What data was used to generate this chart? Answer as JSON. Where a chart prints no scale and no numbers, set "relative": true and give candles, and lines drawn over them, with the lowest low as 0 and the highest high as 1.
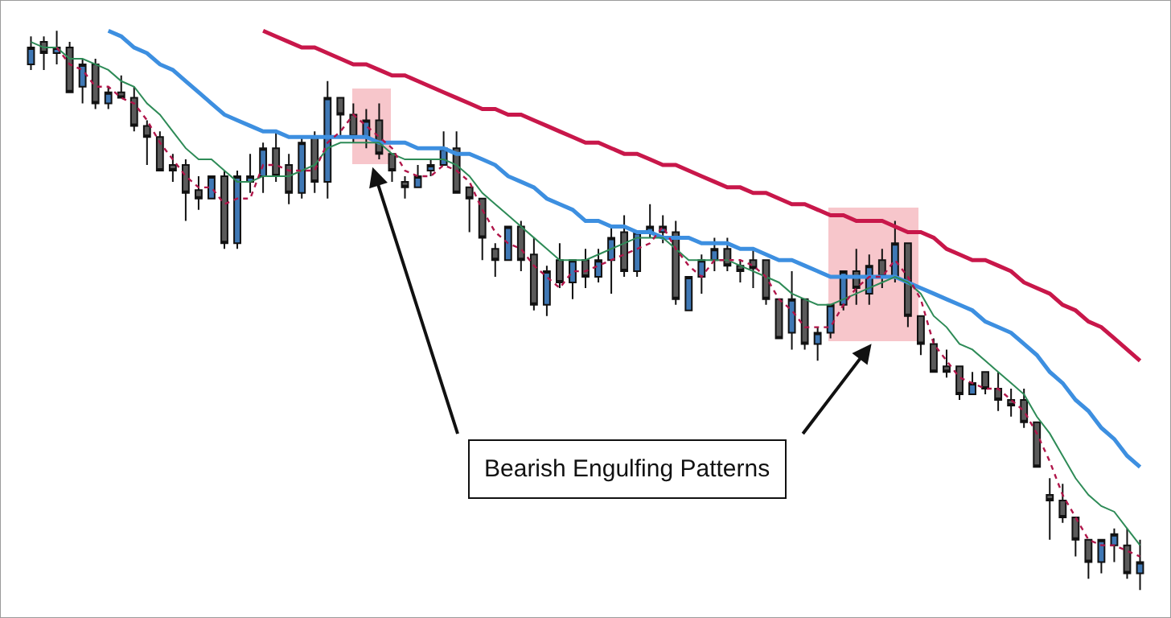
{
  "chart_data": {
    "type": "candlestick",
    "relative": true,
    "tick_labels": false,
    "categories": [
      null,
      null,
      null,
      null,
      null,
      null,
      null,
      null,
      null,
      null,
      null,
      null,
      null,
      null,
      null,
      null,
      null,
      null,
      null,
      null,
      null,
      null,
      null,
      null,
      null,
      null,
      null,
      null,
      null,
      null,
      null,
      null,
      null,
      null,
      null,
      null,
      null,
      null,
      null,
      null,
      null,
      null,
      null,
      null,
      null,
      null,
      null,
      null,
      null,
      null,
      null,
      null,
      null,
      null,
      null,
      null,
      null,
      null,
      null,
      null,
      null,
      null,
      null,
      null,
      null,
      null,
      null,
      null,
      null,
      null,
      null,
      null,
      null,
      null,
      null,
      null,
      null,
      null,
      null,
      null,
      null,
      null,
      null,
      null,
      null,
      null,
      null
    ],
    "ohlc": [
      [
        0.94,
        0.99,
        0.93,
        0.97
      ],
      [
        0.98,
        0.99,
        0.93,
        0.96
      ],
      [
        0.96,
        1.0,
        0.94,
        0.97
      ],
      [
        0.97,
        0.98,
        0.89,
        0.89
      ],
      [
        0.9,
        0.95,
        0.87,
        0.94
      ],
      [
        0.94,
        0.95,
        0.86,
        0.87
      ],
      [
        0.87,
        0.9,
        0.86,
        0.89
      ],
      [
        0.89,
        0.92,
        0.88,
        0.88
      ],
      [
        0.88,
        0.9,
        0.82,
        0.83
      ],
      [
        0.83,
        0.84,
        0.76,
        0.81
      ],
      [
        0.81,
        0.82,
        0.75,
        0.75
      ],
      [
        0.76,
        0.78,
        0.73,
        0.75
      ],
      [
        0.76,
        0.77,
        0.66,
        0.71
      ],
      [
        0.715,
        0.74,
        0.68,
        0.7
      ],
      [
        0.7,
        0.74,
        0.7,
        0.74
      ],
      [
        0.74,
        0.75,
        0.61,
        0.62
      ],
      [
        0.62,
        0.75,
        0.61,
        0.74
      ],
      [
        0.73,
        0.78,
        0.71,
        0.74
      ],
      [
        0.74,
        0.8,
        0.71,
        0.79
      ],
      [
        0.79,
        0.82,
        0.73,
        0.74
      ],
      [
        0.76,
        0.78,
        0.69,
        0.71
      ],
      [
        0.71,
        0.81,
        0.7,
        0.8
      ],
      [
        0.81,
        0.82,
        0.71,
        0.73
      ],
      [
        0.73,
        0.91,
        0.7,
        0.88
      ],
      [
        0.88,
        0.88,
        0.81,
        0.85
      ],
      [
        0.85,
        0.87,
        0.8,
        0.81
      ],
      [
        0.81,
        0.86,
        0.79,
        0.84
      ],
      [
        0.84,
        0.87,
        0.77,
        0.78
      ],
      [
        0.78,
        0.78,
        0.73,
        0.75
      ],
      [
        0.73,
        0.74,
        0.7,
        0.72
      ],
      [
        0.72,
        0.76,
        0.72,
        0.74
      ],
      [
        0.75,
        0.77,
        0.74,
        0.76
      ],
      [
        0.76,
        0.82,
        0.76,
        0.79
      ],
      [
        0.79,
        0.82,
        0.71,
        0.71
      ],
      [
        0.72,
        0.72,
        0.64,
        0.7
      ],
      [
        0.7,
        0.7,
        0.59,
        0.63
      ],
      [
        0.61,
        0.62,
        0.56,
        0.59
      ],
      [
        0.59,
        0.65,
        0.59,
        0.65
      ],
      [
        0.65,
        0.66,
        0.57,
        0.59
      ],
      [
        0.6,
        0.63,
        0.5,
        0.51
      ],
      [
        0.51,
        0.58,
        0.49,
        0.57
      ],
      [
        0.59,
        0.62,
        0.54,
        0.55
      ],
      [
        0.55,
        0.59,
        0.52,
        0.59
      ],
      [
        0.59,
        0.61,
        0.54,
        0.56
      ],
      [
        0.56,
        0.61,
        0.55,
        0.59
      ],
      [
        0.59,
        0.65,
        0.53,
        0.63
      ],
      [
        0.64,
        0.67,
        0.56,
        0.57
      ],
      [
        0.57,
        0.64,
        0.56,
        0.64
      ],
      [
        0.64,
        0.69,
        0.63,
        0.65
      ],
      [
        0.64,
        0.67,
        0.62,
        0.65
      ],
      [
        0.64,
        0.66,
        0.51,
        0.52
      ],
      [
        0.5,
        0.56,
        0.5,
        0.56
      ],
      [
        0.56,
        0.6,
        0.53,
        0.59
      ],
      [
        0.59,
        0.63,
        0.57,
        0.61
      ],
      [
        0.61,
        0.63,
        0.57,
        0.58
      ],
      [
        0.58,
        0.59,
        0.55,
        0.57
      ],
      [
        0.59,
        0.61,
        0.54,
        0.575
      ],
      [
        0.59,
        0.59,
        0.51,
        0.52
      ],
      [
        0.52,
        0.52,
        0.45,
        0.45
      ],
      [
        0.46,
        0.57,
        0.43,
        0.52
      ],
      [
        0.52,
        0.52,
        0.43,
        0.44
      ],
      [
        0.44,
        0.47,
        0.41,
        0.46
      ],
      [
        0.46,
        0.51,
        0.45,
        0.51
      ],
      [
        0.51,
        0.57,
        0.5,
        0.57
      ],
      [
        0.57,
        0.61,
        0.51,
        0.54
      ],
      [
        0.53,
        0.6,
        0.51,
        0.58
      ],
      [
        0.59,
        0.61,
        0.54,
        0.56
      ],
      [
        0.56,
        0.66,
        0.55,
        0.62
      ],
      [
        0.62,
        0.62,
        0.47,
        0.49
      ],
      [
        0.49,
        0.49,
        0.42,
        0.44
      ],
      [
        0.44,
        0.45,
        0.39,
        0.39
      ],
      [
        0.4,
        0.43,
        0.38,
        0.39
      ],
      [
        0.4,
        0.4,
        0.34,
        0.35
      ],
      [
        0.35,
        0.39,
        0.35,
        0.37
      ],
      [
        0.39,
        0.39,
        0.35,
        0.36
      ],
      [
        0.36,
        0.39,
        0.32,
        0.34
      ],
      [
        0.34,
        0.36,
        0.31,
        0.33
      ],
      [
        0.34,
        0.36,
        0.29,
        0.3
      ],
      [
        0.3,
        0.3,
        0.22,
        0.22
      ],
      [
        0.17,
        0.2,
        0.09,
        0.16
      ],
      [
        0.16,
        0.19,
        0.12,
        0.13
      ],
      [
        0.13,
        0.13,
        0.06,
        0.09
      ],
      [
        0.09,
        0.09,
        0.02,
        0.05
      ],
      [
        0.05,
        0.09,
        0.03,
        0.09
      ],
      [
        0.08,
        0.11,
        0.05,
        0.1
      ],
      [
        0.08,
        0.11,
        0.02,
        0.03
      ],
      [
        0.03,
        0.09,
        0.0,
        0.05
      ]
    ],
    "colors": [
      "#3f78b5",
      "#5a5a5a",
      "#3f78b5",
      "#5a5a5a",
      "#3f78b5",
      "#5a5a5a",
      "#3f78b5",
      "#5a5a5a",
      "#5a5a5a",
      "#5a5a5a",
      "#5a5a5a",
      "#5a5a5a",
      "#5a5a5a",
      "#5a5a5a",
      "#3f78b5",
      "#5a5a5a",
      "#3f78b5",
      "#3f78b5",
      "#3f78b5",
      "#5a5a5a",
      "#5a5a5a",
      "#3f78b5",
      "#5a5a5a",
      "#3f78b5",
      "#5a5a5a",
      "#5a5a5a",
      "#3f78b5",
      "#5a5a5a",
      "#5a5a5a",
      "#5a5a5a",
      "#3f78b5",
      "#3f78b5",
      "#3f78b5",
      "#5a5a5a",
      "#5a5a5a",
      "#5a5a5a",
      "#5a5a5a",
      "#3f78b5",
      "#5a5a5a",
      "#5a5a5a",
      "#3f78b5",
      "#5a5a5a",
      "#3f78b5",
      "#5a5a5a",
      "#3f78b5",
      "#3f78b5",
      "#5a5a5a",
      "#3f78b5",
      "#3f78b5",
      "#3f78b5",
      "#5a5a5a",
      "#3f78b5",
      "#3f78b5",
      "#3f78b5",
      "#5a5a5a",
      "#5a5a5a",
      "#5a5a5a",
      "#5a5a5a",
      "#5a5a5a",
      "#3f78b5",
      "#5a5a5a",
      "#3f78b5",
      "#3f78b5",
      "#3f78b5",
      "#5a5a5a",
      "#3f78b5",
      "#5a5a5a",
      "#3f78b5",
      "#5a5a5a",
      "#5a5a5a",
      "#5a5a5a",
      "#5a5a5a",
      "#5a5a5a",
      "#3f78b5",
      "#5a5a5a",
      "#5a5a5a",
      "#5a5a5a",
      "#5a5a5a",
      "#5a5a5a",
      "#5a5a5a",
      "#5a5a5a",
      "#5a5a5a",
      "#5a5a5a",
      "#3f78b5",
      "#3f78b5",
      "#5a5a5a",
      "#3f78b5"
    ],
    "series": [
      {
        "type": "line",
        "color": "#c8174a",
        "line_style": "solid",
        "values": [
          null,
          null,
          null,
          null,
          null,
          null,
          null,
          null,
          null,
          null,
          null,
          null,
          null,
          null,
          null,
          null,
          null,
          null,
          1.0,
          0.99,
          0.98,
          0.97,
          0.97,
          0.96,
          0.95,
          0.94,
          0.94,
          0.93,
          0.92,
          0.92,
          0.91,
          0.9,
          0.89,
          0.88,
          0.87,
          0.86,
          0.86,
          0.85,
          0.85,
          0.84,
          0.83,
          0.82,
          0.81,
          0.8,
          0.8,
          0.79,
          0.78,
          0.78,
          0.77,
          0.76,
          0.76,
          0.75,
          0.74,
          0.73,
          0.72,
          0.72,
          0.71,
          0.71,
          0.7,
          0.69,
          0.69,
          0.68,
          0.67,
          0.67,
          0.66,
          0.66,
          0.66,
          0.65,
          0.64,
          0.64,
          0.63,
          0.61,
          0.6,
          0.59,
          0.59,
          0.58,
          0.57,
          0.55,
          0.54,
          0.53,
          0.51,
          0.5,
          0.48,
          0.47,
          0.45,
          0.43,
          0.41
        ]
      },
      {
        "type": "line",
        "color": "#3d8fe0",
        "line_style": "solid",
        "values": [
          null,
          null,
          null,
          null,
          null,
          null,
          1.0,
          0.99,
          0.97,
          0.96,
          0.94,
          0.93,
          0.91,
          0.89,
          0.87,
          0.85,
          0.84,
          0.83,
          0.82,
          0.82,
          0.81,
          0.81,
          0.81,
          0.81,
          0.81,
          0.81,
          0.81,
          0.8,
          0.8,
          0.8,
          0.79,
          0.79,
          0.79,
          0.78,
          0.78,
          0.77,
          0.76,
          0.74,
          0.73,
          0.72,
          0.7,
          0.69,
          0.68,
          0.66,
          0.66,
          0.65,
          0.65,
          0.64,
          0.64,
          0.63,
          0.63,
          0.63,
          0.62,
          0.62,
          0.62,
          0.61,
          0.61,
          0.6,
          0.59,
          0.59,
          0.58,
          0.57,
          0.56,
          0.56,
          0.56,
          0.56,
          0.56,
          0.56,
          0.55,
          0.54,
          0.53,
          0.52,
          0.51,
          0.5,
          0.48,
          0.47,
          0.46,
          0.44,
          0.42,
          0.39,
          0.37,
          0.34,
          0.32,
          0.29,
          0.27,
          0.24,
          0.22
        ]
      },
      {
        "type": "line",
        "color": "#2e8b57",
        "line_style": "solid",
        "values": [
          0.98,
          0.97,
          0.97,
          0.95,
          0.95,
          0.94,
          0.93,
          0.91,
          0.9,
          0.87,
          0.85,
          0.82,
          0.79,
          0.77,
          0.77,
          0.75,
          0.73,
          0.73,
          0.74,
          0.74,
          0.74,
          0.75,
          0.76,
          0.79,
          0.8,
          0.8,
          0.8,
          0.8,
          0.78,
          0.77,
          0.77,
          0.77,
          0.77,
          0.76,
          0.74,
          0.71,
          0.69,
          0.67,
          0.65,
          0.63,
          0.61,
          0.59,
          0.59,
          0.59,
          0.6,
          0.61,
          0.62,
          0.63,
          0.63,
          0.63,
          0.61,
          0.59,
          0.59,
          0.59,
          0.59,
          0.58,
          0.57,
          0.56,
          0.55,
          0.53,
          0.52,
          0.51,
          0.51,
          0.52,
          0.53,
          0.54,
          0.55,
          0.56,
          0.55,
          0.53,
          0.49,
          0.47,
          0.44,
          0.43,
          0.41,
          0.39,
          0.37,
          0.35,
          0.31,
          0.28,
          0.24,
          0.2,
          0.17,
          0.15,
          0.14,
          0.11,
          0.08
        ]
      },
      {
        "type": "line",
        "color": "#b0164a",
        "line_style": "dotted",
        "values": [
          null,
          null,
          0.97,
          0.94,
          0.93,
          0.9,
          0.9,
          0.88,
          0.87,
          0.84,
          0.8,
          0.77,
          0.74,
          0.72,
          0.72,
          0.69,
          0.7,
          0.7,
          0.76,
          0.76,
          0.75,
          0.75,
          0.75,
          0.8,
          0.82,
          0.85,
          0.83,
          0.81,
          0.79,
          0.75,
          0.74,
          0.74,
          0.76,
          0.75,
          0.73,
          0.68,
          0.64,
          0.62,
          0.61,
          0.58,
          0.56,
          0.54,
          0.57,
          0.57,
          0.58,
          0.59,
          0.6,
          0.61,
          0.62,
          0.65,
          0.61,
          0.58,
          0.56,
          0.59,
          0.59,
          0.59,
          0.58,
          0.56,
          0.52,
          0.5,
          0.47,
          0.47,
          0.47,
          0.51,
          0.54,
          0.56,
          0.56,
          0.59,
          0.56,
          0.52,
          0.44,
          0.41,
          0.38,
          0.37,
          0.36,
          0.36,
          0.34,
          0.32,
          0.28,
          0.23,
          0.17,
          0.13,
          0.09,
          0.08,
          0.08,
          0.07,
          0.06
        ]
      }
    ],
    "annotations": [
      "Bearish Engulfing Patterns"
    ]
  }
}
